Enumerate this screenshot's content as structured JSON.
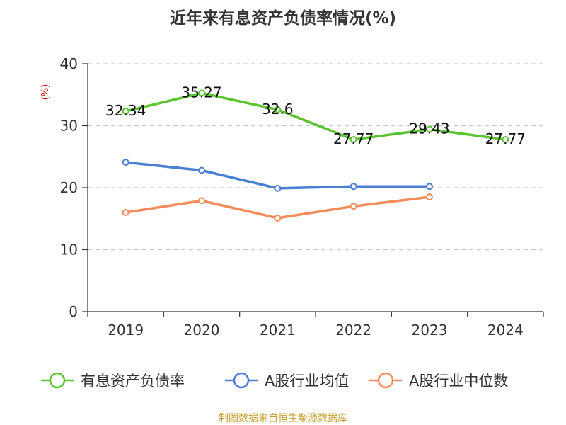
{
  "chart_data": {
    "type": "line",
    "title": "近年来有息资产负债率情况(%)",
    "ylabel": "(%)",
    "xlabel": "",
    "categories": [
      "2019",
      "2020",
      "2021",
      "2022",
      "2023",
      "2024"
    ],
    "ylim": [
      0,
      40
    ],
    "yticks": [
      0,
      10,
      20,
      30,
      40
    ],
    "grid": true,
    "legend_position": "bottom",
    "series": [
      {
        "name": "有息资产负债率",
        "color": "#5cc430",
        "values": [
          32.34,
          35.27,
          32.6,
          27.77,
          29.43,
          27.77
        ],
        "labels": [
          "32.34",
          "35.27",
          "32.6",
          "27.77",
          "29.43",
          "27.77"
        ]
      },
      {
        "name": "A股行业均值",
        "color": "#4a7fd4",
        "values": [
          24.1,
          22.8,
          19.9,
          20.2,
          20.2,
          null
        ]
      },
      {
        "name": "A股行业中位数",
        "color": "#f28c5a",
        "values": [
          16.0,
          17.9,
          15.1,
          17.0,
          18.5,
          null
        ]
      }
    ],
    "source": "制图数据来自恒生聚源数据库"
  }
}
